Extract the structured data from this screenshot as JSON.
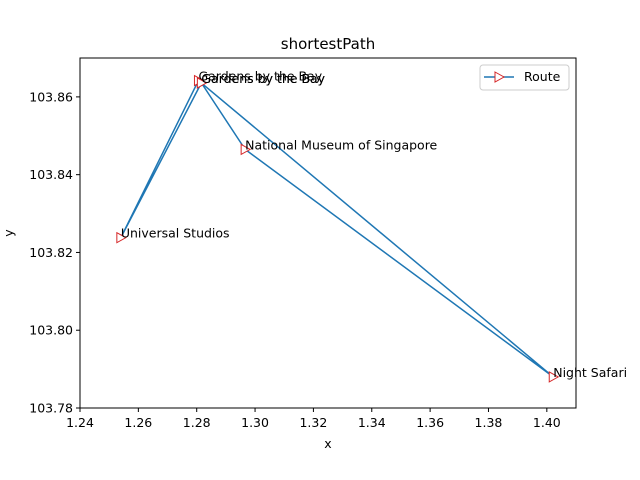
{
  "chart_data": {
    "type": "line",
    "title": "shortestPath",
    "xlabel": "x",
    "ylabel": "y",
    "xlim": [
      1.24,
      1.41
    ],
    "ylim": [
      103.78,
      103.87
    ],
    "xticks": [
      1.24,
      1.26,
      1.28,
      1.3,
      1.32,
      1.34,
      1.36,
      1.38,
      1.4
    ],
    "xtick_labels": [
      "1.24",
      "1.26",
      "1.28",
      "1.30",
      "1.32",
      "1.34",
      "1.36",
      "1.38",
      "1.40"
    ],
    "yticks": [
      103.78,
      103.8,
      103.82,
      103.84,
      103.86
    ],
    "ytick_labels": [
      "103.78",
      "103.80",
      "103.82",
      "103.84",
      "103.86"
    ],
    "grid": false,
    "legend": {
      "position": "upper right",
      "entries": [
        "Route"
      ]
    },
    "series": [
      {
        "name": "Route",
        "color": "#1f77b4",
        "marker": "triangle-right",
        "marker_color": "#d62728",
        "points": [
          {
            "x": 1.2816,
            "y": 103.8636,
            "label": "Gardens by the Bay"
          },
          {
            "x": 1.2966,
            "y": 103.8465,
            "label": "National Museum of Singapore"
          },
          {
            "x": 1.4022,
            "y": 103.788,
            "label": "Night Safari"
          },
          {
            "x": 1.2806,
            "y": 103.8642,
            "label": "Gardens by the Bay"
          },
          {
            "x": 1.254,
            "y": 103.8238,
            "label": "Universal Studios"
          },
          {
            "x": 1.2816,
            "y": 103.8636,
            "label": "Gardens by the Bay"
          }
        ]
      }
    ]
  }
}
